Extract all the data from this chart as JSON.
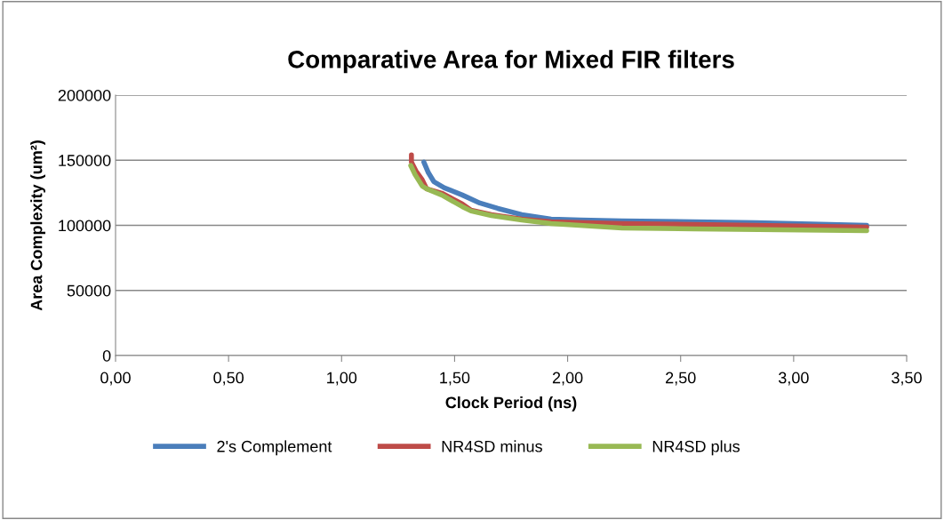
{
  "chart_data": {
    "type": "line",
    "title": "Comparative Area for Mixed FIR filters",
    "xlabel": "Clock Period (ns)",
    "ylabel": "Area Complexity (um²)",
    "xlim": [
      0,
      3.5
    ],
    "xticks": [
      {
        "value": 0,
        "label": "0,00"
      },
      {
        "value": 0.5,
        "label": "0,50"
      },
      {
        "value": 1,
        "label": "1,00"
      },
      {
        "value": 1.5,
        "label": "1,50"
      },
      {
        "value": 2,
        "label": "2,00"
      },
      {
        "value": 2.5,
        "label": "2,50"
      },
      {
        "value": 3,
        "label": "3,00"
      },
      {
        "value": 3.5,
        "label": "3,50"
      }
    ],
    "ylim": [
      0,
      200000
    ],
    "yticks": [
      0,
      50000,
      100000,
      150000,
      200000
    ],
    "grid": "y",
    "legend": "bottom",
    "marker": "none",
    "line_style": "solid",
    "series": [
      {
        "name": "2's Complement",
        "color": "#4a7ebb",
        "x": [
          1.364,
          1.384,
          1.408,
          1.455,
          1.534,
          1.612,
          1.691,
          1.797,
          1.927,
          2.057,
          2.241,
          2.831,
          3.323
        ],
        "values": [
          148600,
          140400,
          133600,
          128800,
          123300,
          117100,
          113000,
          108200,
          104800,
          104100,
          103400,
          102000,
          100000
        ]
      },
      {
        "name": "NR4SD minus",
        "color": "#be4b48",
        "x": [
          1.309,
          1.309,
          1.329,
          1.357,
          1.376,
          1.443,
          1.534,
          1.573,
          1.663,
          1.797,
          1.927,
          2.241,
          2.831,
          3.323
        ],
        "values": [
          154100,
          148600,
          141800,
          134900,
          128100,
          124700,
          116400,
          111600,
          108200,
          104800,
          102700,
          101400,
          100000,
          98600
        ]
      },
      {
        "name": "NR4SD plus",
        "color": "#98b954",
        "x": [
          1.306,
          1.325,
          1.357,
          1.376,
          1.443,
          1.534,
          1.573,
          1.663,
          1.797,
          1.927,
          2.241,
          2.556,
          3.323
        ],
        "values": [
          145900,
          139000,
          130100,
          128100,
          123300,
          114400,
          111000,
          107500,
          104100,
          101400,
          97900,
          97300,
          95900
        ]
      }
    ]
  }
}
